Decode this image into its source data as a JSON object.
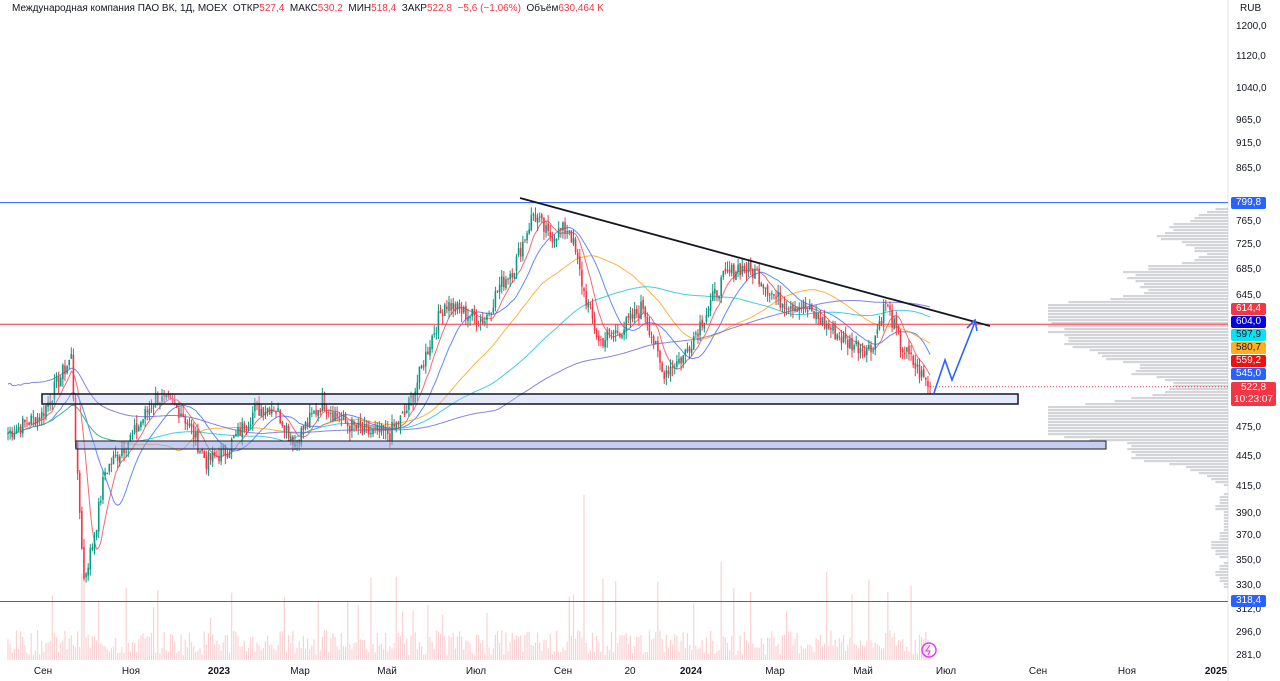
{
  "header": {
    "title": "Международная компания ПАО ВК, 1Д, MOEX",
    "open_label": "ОТКР",
    "open": "527,4",
    "high_label": "МАКС",
    "high": "530,2",
    "low_label": "МИН",
    "low": "518,4",
    "close_label": "ЗАКР",
    "close": "522,8",
    "change": "−5,6 (−1,06%)",
    "volume_label": "Объём",
    "volume": "630,464 K"
  },
  "currency": "RUB",
  "y_axis_labels": [
    "1200,0",
    "1120,0",
    "1040,0",
    "965,0",
    "915,0",
    "865,0",
    "765,0",
    "725,0",
    "685,0",
    "645,0",
    "475,0",
    "445,0",
    "415,0",
    "390,0",
    "370,0",
    "350,0",
    "330,0",
    "312,0",
    "296,0",
    "281,0"
  ],
  "x_axis_labels": [
    "Сен",
    "Ноя",
    "2023",
    "Мар",
    "Май",
    "Июл",
    "Сен",
    "20",
    "2024",
    "Мар",
    "Май",
    "Июл",
    "Сен",
    "Ноя",
    "2025"
  ],
  "price_tags": [
    {
      "value": "799,8",
      "color": "#2962ff"
    },
    {
      "value": "614,4",
      "color": "#f23645"
    },
    {
      "value": "604,0",
      "color": "#0000e0"
    },
    {
      "value": "597,9",
      "color": "#00e5ff",
      "text": "#131722"
    },
    {
      "value": "580,7",
      "color": "#ffb020",
      "text": "#131722"
    },
    {
      "value": "559,2",
      "color": "#f01010"
    },
    {
      "value": "545,0",
      "color": "#2962ff"
    },
    {
      "value": "522,8",
      "color": "#f23645"
    },
    {
      "value": "318,4",
      "color": "#2962ff"
    }
  ],
  "countdown": "10:23:07",
  "chart_data": {
    "type": "candlestick",
    "scale": "log",
    "ylim": [
      281,
      1200
    ],
    "price_path": [
      [
        0,
        470
      ],
      [
        16,
        490
      ],
      [
        30,
        560
      ],
      [
        33,
        420
      ],
      [
        36,
        335
      ],
      [
        41,
        370
      ],
      [
        46,
        430
      ],
      [
        60,
        470
      ],
      [
        70,
        510
      ],
      [
        82,
        495
      ],
      [
        94,
        440
      ],
      [
        103,
        450
      ],
      [
        117,
        495
      ],
      [
        126,
        500
      ],
      [
        136,
        460
      ],
      [
        149,
        505
      ],
      [
        160,
        480
      ],
      [
        169,
        470
      ],
      [
        181,
        470
      ],
      [
        188,
        490
      ],
      [
        193,
        520
      ],
      [
        200,
        580
      ],
      [
        207,
        635
      ],
      [
        216,
        620
      ],
      [
        226,
        610
      ],
      [
        233,
        660
      ],
      [
        240,
        690
      ],
      [
        249,
        780
      ],
      [
        256,
        740
      ],
      [
        266,
        755
      ],
      [
        273,
        650
      ],
      [
        280,
        580
      ],
      [
        292,
        600
      ],
      [
        301,
        630
      ],
      [
        310,
        540
      ],
      [
        320,
        560
      ],
      [
        329,
        610
      ],
      [
        339,
        670
      ],
      [
        346,
        690
      ],
      [
        355,
        680
      ],
      [
        364,
        640
      ],
      [
        376,
        630
      ],
      [
        385,
        610
      ],
      [
        397,
        580
      ],
      [
        409,
        570
      ],
      [
        416,
        635
      ],
      [
        423,
        575
      ],
      [
        432,
        540
      ],
      [
        437,
        522.8
      ]
    ],
    "horizontal_levels": [
      799.8,
      604.0,
      318.4
    ],
    "zones": [
      [
        505,
        520
      ],
      [
        452,
        462
      ]
    ]
  }
}
